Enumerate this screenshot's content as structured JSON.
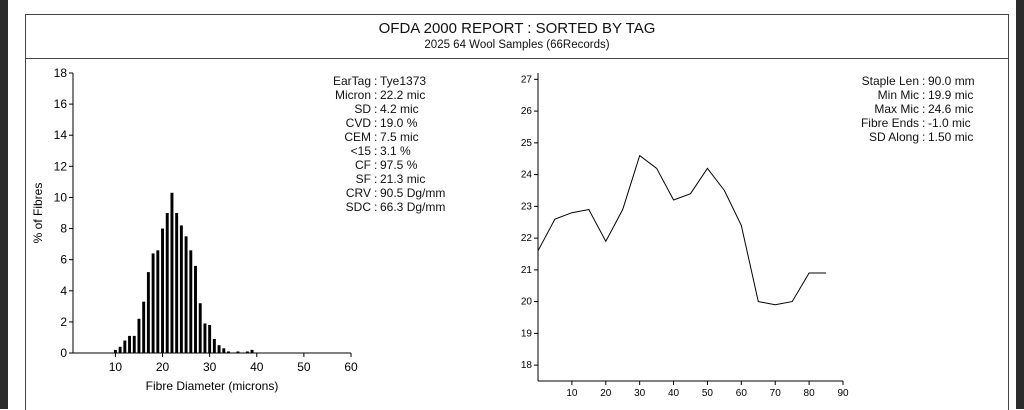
{
  "report": {
    "title": "OFDA 2000 REPORT : SORTED BY TAG",
    "subtitle": "2025 64 Wool Samples (66Records)"
  },
  "stats_left": [
    {
      "label": "EarTag",
      "value": "Tye1373"
    },
    {
      "label": "Micron",
      "value": "22.2 mic"
    },
    {
      "label": "SD",
      "value": "4.2 mic"
    },
    {
      "label": "CVD",
      "value": "19.0 %"
    },
    {
      "label": "CEM",
      "value": "7.5 mic"
    },
    {
      "label": "<15",
      "value": "3.1 %"
    },
    {
      "label": "CF",
      "value": "97.5 %"
    },
    {
      "label": "SF",
      "value": "21.3 mic"
    },
    {
      "label": "CRV",
      "value": "90.5 Dg/mm"
    },
    {
      "label": "SDC",
      "value": "66.3 Dg/mm"
    }
  ],
  "stats_right": [
    {
      "label": "Staple Len",
      "value": "90.0 mm"
    },
    {
      "label": "Min Mic",
      "value": "19.9 mic"
    },
    {
      "label": "Max Mic",
      "value": "24.6 mic"
    },
    {
      "label": "Fibre Ends",
      "value": "-1.0 mic"
    },
    {
      "label": "SD Along",
      "value": "1.50 mic"
    }
  ],
  "chart_data": [
    {
      "type": "bar",
      "title": "",
      "xlabel": "Fibre Diameter (microns)",
      "ylabel": "% of Fibres",
      "xlim": [
        1,
        60
      ],
      "ylim": [
        0,
        18
      ],
      "xticks": [
        10,
        20,
        30,
        40,
        50,
        60
      ],
      "yticks": [
        0,
        2,
        4,
        6,
        8,
        10,
        12,
        14,
        16,
        18
      ],
      "x": [
        10,
        11,
        12,
        13,
        14,
        15,
        16,
        17,
        18,
        19,
        20,
        21,
        22,
        23,
        24,
        25,
        26,
        27,
        28,
        29,
        30,
        31,
        32,
        33,
        34,
        35,
        36,
        37,
        38,
        39
      ],
      "values": [
        0.2,
        0.4,
        0.8,
        1.1,
        1.1,
        2.2,
        3.3,
        5.2,
        6.4,
        6.6,
        8.0,
        9.0,
        10.3,
        9.0,
        8.2,
        7.5,
        6.6,
        5.6,
        3.2,
        1.9,
        1.8,
        0.9,
        0.5,
        0.3,
        0.1,
        0.0,
        0.1,
        0.0,
        0.1,
        0.2
      ]
    },
    {
      "type": "line",
      "title": "",
      "xlabel": "",
      "ylabel": "",
      "xlim": [
        0,
        90
      ],
      "ylim": [
        17.5,
        27.2
      ],
      "xticks": [
        10,
        20,
        30,
        40,
        50,
        60,
        70,
        80,
        90
      ],
      "yticks": [
        18,
        19,
        20,
        21,
        22,
        23,
        24,
        25,
        26,
        27
      ],
      "x": [
        0,
        5,
        10,
        15,
        20,
        25,
        30,
        35,
        40,
        45,
        50,
        55,
        60,
        65,
        70,
        75,
        80,
        85
      ],
      "y": [
        21.6,
        22.6,
        22.8,
        22.9,
        21.9,
        22.9,
        24.6,
        24.2,
        23.2,
        23.4,
        24.2,
        23.5,
        22.4,
        20.0,
        19.9,
        20.0,
        20.9,
        20.9
      ]
    }
  ]
}
